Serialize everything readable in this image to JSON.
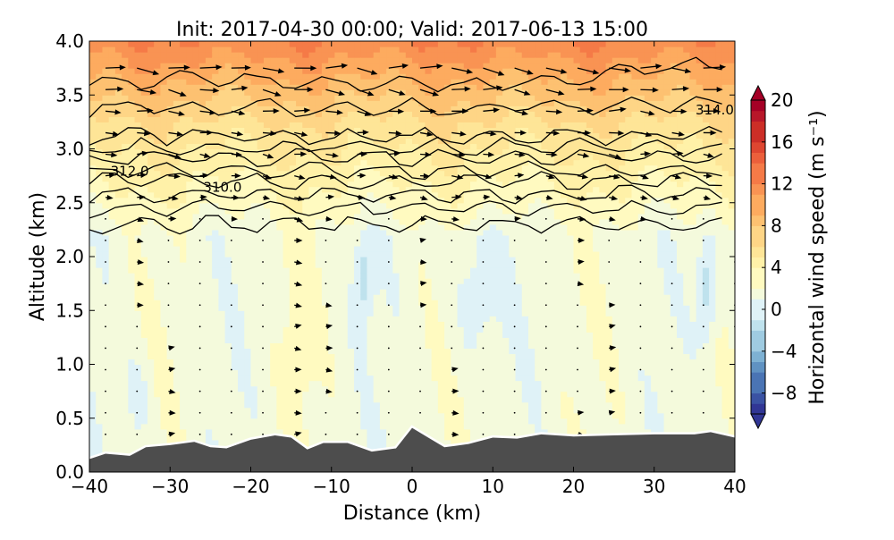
{
  "chart_data": {
    "type": "heatmap",
    "title": "Init: 2017-04-30 00:00; Valid: 2017-06-13 15:00",
    "xlabel": "Distance (km)",
    "ylabel": "Altitude (km)",
    "xlim": [
      -40,
      40
    ],
    "ylim": [
      0,
      4
    ],
    "xticks": [
      "−40",
      "−30",
      "−20",
      "−10",
      "0",
      "10",
      "20",
      "30",
      "40"
    ],
    "xtick_values": [
      -40,
      -30,
      -20,
      -10,
      0,
      10,
      20,
      30,
      40
    ],
    "yticks": [
      "0.0",
      "0.5",
      "1.0",
      "1.5",
      "2.0",
      "2.5",
      "3.0",
      "3.5",
      "4.0"
    ],
    "ytick_values": [
      0,
      0.5,
      1,
      1.5,
      2,
      2.5,
      3,
      3.5,
      4
    ],
    "colorbar": {
      "label": "Horizontal wind speed (m s⁻¹)",
      "range": [
        -10,
        20
      ],
      "extend": "both",
      "ticks": [
        "20",
        "16",
        "12",
        "8",
        "4",
        "0",
        "−4",
        "−8"
      ],
      "tick_values": [
        20,
        16,
        12,
        8,
        4,
        0,
        -4,
        -8
      ],
      "colormap": "RdYlBu_r"
    },
    "contour_labels": [
      {
        "text": "312.0",
        "x": -35,
        "y": 2.75
      },
      {
        "text": "310.0",
        "x": -23.5,
        "y": 2.6
      },
      {
        "text": "314.0",
        "x": 37.5,
        "y": 3.32
      }
    ],
    "terrain": {
      "color": "#4d4d4d",
      "x": [
        -40,
        -38,
        -35,
        -33,
        -30,
        -27,
        -25,
        -23,
        -20,
        -17,
        -15,
        -13,
        -11,
        -8,
        -5,
        -2,
        0,
        2,
        4,
        7,
        10,
        13,
        16,
        20,
        25,
        30,
        35,
        37,
        40
      ],
      "y": [
        0.12,
        0.17,
        0.15,
        0.23,
        0.25,
        0.28,
        0.23,
        0.22,
        0.3,
        0.34,
        0.32,
        0.21,
        0.27,
        0.27,
        0.19,
        0.22,
        0.41,
        0.32,
        0.23,
        0.26,
        0.32,
        0.31,
        0.35,
        0.33,
        0.34,
        0.35,
        0.35,
        0.37,
        0.32
      ]
    }
  }
}
